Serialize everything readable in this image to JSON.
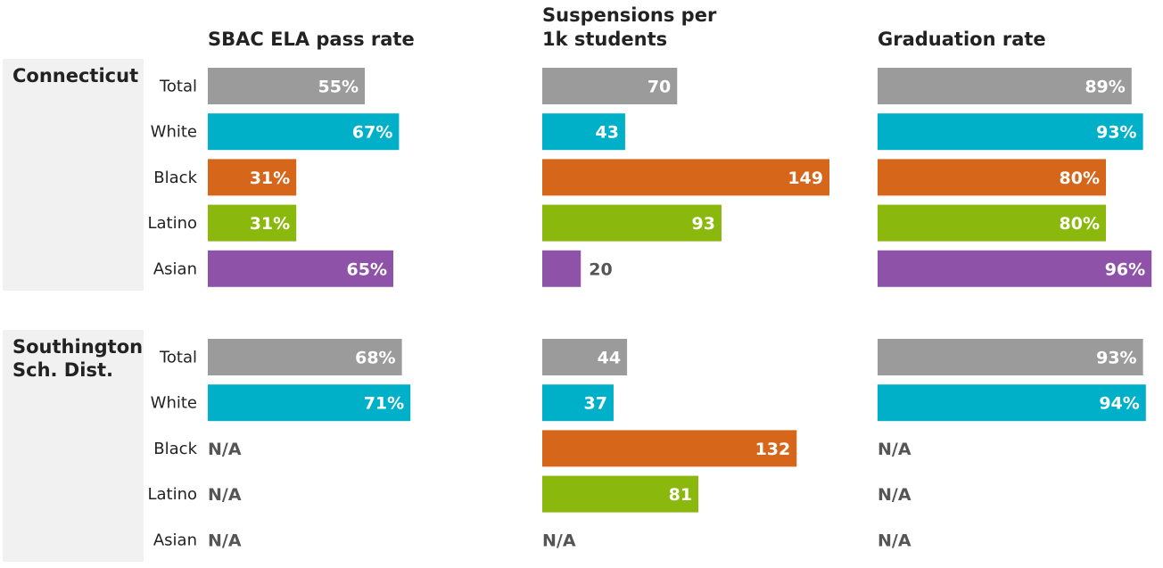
{
  "chart_data": {
    "type": "bar",
    "metrics": [
      {
        "key": "ela",
        "title": [
          "SBAC ELA pass rate"
        ],
        "suffix": "%",
        "max": 100
      },
      {
        "key": "susp",
        "title": [
          "Suspensions per",
          "1k students"
        ],
        "suffix": "",
        "max": 149
      },
      {
        "key": "grad",
        "title": [
          "Graduation rate"
        ],
        "suffix": "%",
        "max": 100
      }
    ],
    "na_label": "N/A",
    "groups": [
      {
        "name": [
          "Connecticut"
        ],
        "rows": [
          {
            "label": "Total",
            "color": "#9b9b9b",
            "ela": 55,
            "susp": 70,
            "grad": 89
          },
          {
            "label": "White",
            "color": "#00b0c8",
            "ela": 67,
            "susp": 43,
            "grad": 93
          },
          {
            "label": "Black",
            "color": "#d6661a",
            "ela": 31,
            "susp": 149,
            "grad": 80
          },
          {
            "label": "Latino",
            "color": "#8ab80d",
            "ela": 31,
            "susp": 93,
            "grad": 80
          },
          {
            "label": "Asian",
            "color": "#8e53a8",
            "ela": 65,
            "susp": 20,
            "grad": 96
          }
        ]
      },
      {
        "name": [
          "Southington",
          "Sch. Dist."
        ],
        "rows": [
          {
            "label": "Total",
            "color": "#9b9b9b",
            "ela": 68,
            "susp": 44,
            "grad": 93
          },
          {
            "label": "White",
            "color": "#00b0c8",
            "ela": 71,
            "susp": 37,
            "grad": 94
          },
          {
            "label": "Black",
            "color": "#d6661a",
            "ela": null,
            "susp": 132,
            "grad": null
          },
          {
            "label": "Latino",
            "color": "#8ab80d",
            "ela": null,
            "susp": 81,
            "grad": null
          },
          {
            "label": "Asian",
            "color": "#8e53a8",
            "ela": null,
            "susp": null,
            "grad": null
          }
        ]
      }
    ]
  }
}
